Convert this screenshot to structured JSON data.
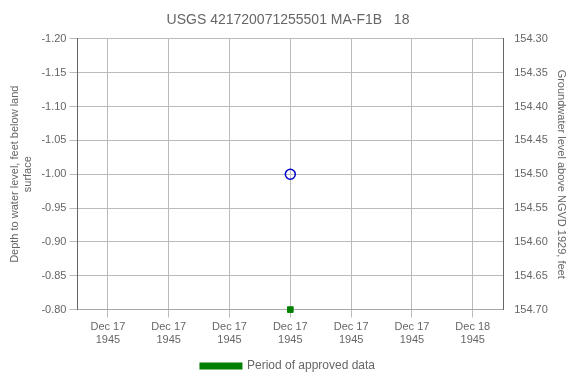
{
  "chart_data": {
    "type": "scatter",
    "title": "USGS 421720071255501 MA-F1B   18",
    "y_label": "Depth to water level, feet below land\nsurface",
    "y2_label": "Groundwater level above NGVD 1929, feet",
    "categories": [
      "Dec 17\n1945",
      "Dec 17\n1945",
      "Dec 17\n1945",
      "Dec 17\n1945",
      "Dec 17\n1945",
      "Dec 17\n1945",
      "Dec 18\n1945"
    ],
    "series": [
      {
        "color": "#0000cc",
        "marker": "circle",
        "values": [
          null,
          null,
          null,
          -1.0,
          null,
          null,
          null
        ]
      },
      {
        "name": "Period of approved data",
        "color": "#008000",
        "marker": "square",
        "values": [
          null,
          null,
          null,
          -0.8,
          null,
          null,
          null
        ]
      }
    ],
    "ylim": [
      -0.8,
      -1.2
    ],
    "yticks": [
      {
        "value": -1.2,
        "label": "-1.20"
      },
      -1.15,
      {
        "value": -1.1,
        "label": "-1.10"
      },
      -1.05,
      {
        "value": -1.0,
        "label": "-1.00"
      },
      -0.95,
      {
        "value": -0.9,
        "label": "-0.90"
      },
      -0.85,
      {
        "value": -0.8,
        "label": "-0.80"
      }
    ],
    "y2lim": [
      154.7,
      154.3
    ],
    "y2ticks": [
      {
        "value": 154.3,
        "label": "154.30"
      },
      154.35,
      {
        "value": 154.4,
        "label": "154.40"
      },
      154.45,
      {
        "value": 154.5,
        "label": "154.50"
      },
      154.55,
      {
        "value": 154.6,
        "label": "154.60"
      },
      154.65,
      {
        "value": 154.7,
        "label": "154.70"
      }
    ],
    "grid": true,
    "grid_color": "#bbbbbb",
    "legend": "bottom"
  }
}
